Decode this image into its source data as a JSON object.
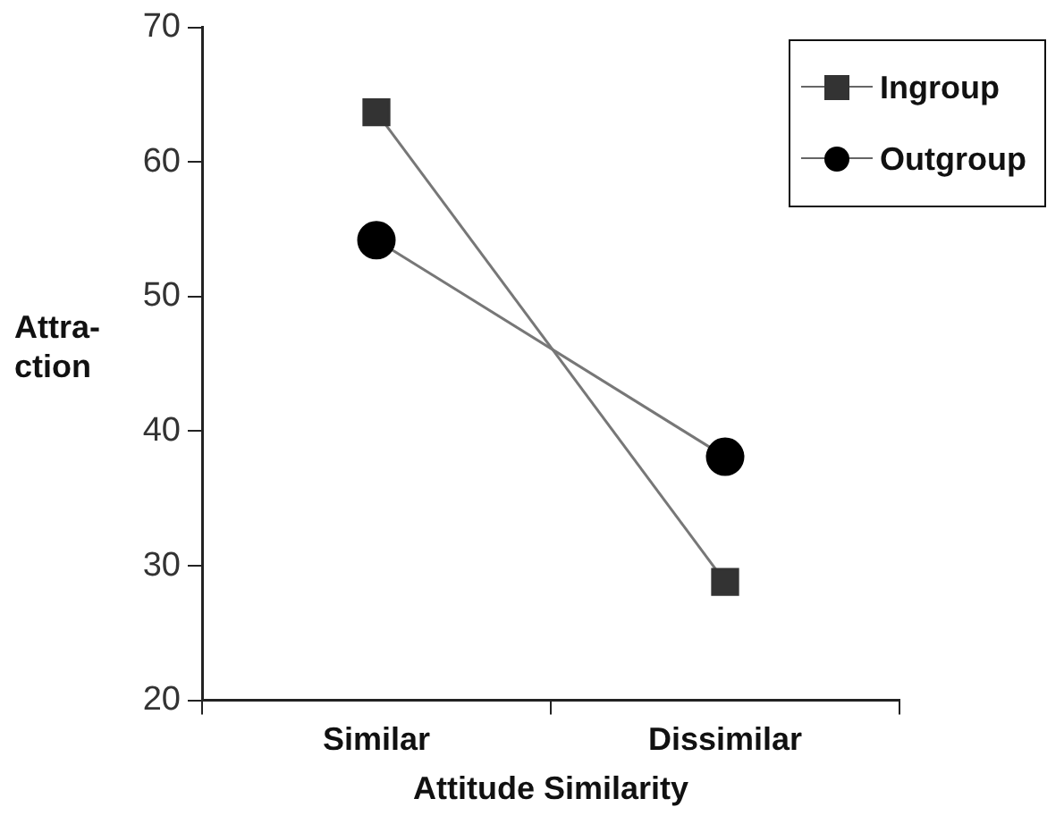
{
  "chart_data": {
    "type": "line",
    "xlabel": "Attitude Similarity",
    "ylabel": "Attra-ction",
    "categories": [
      "Similar",
      "Dissimilar"
    ],
    "ylim": [
      20,
      70
    ],
    "yticks": [
      20,
      30,
      40,
      50,
      60,
      70
    ],
    "grid": false,
    "legend": "top right",
    "series": [
      {
        "name": "Ingroup",
        "color": "#333333",
        "marker": "square",
        "values": [
          63.7,
          28.8
        ]
      },
      {
        "name": "Outgroup",
        "color": "#000000",
        "marker": "circle",
        "values": [
          54.2,
          38.1
        ]
      }
    ]
  }
}
